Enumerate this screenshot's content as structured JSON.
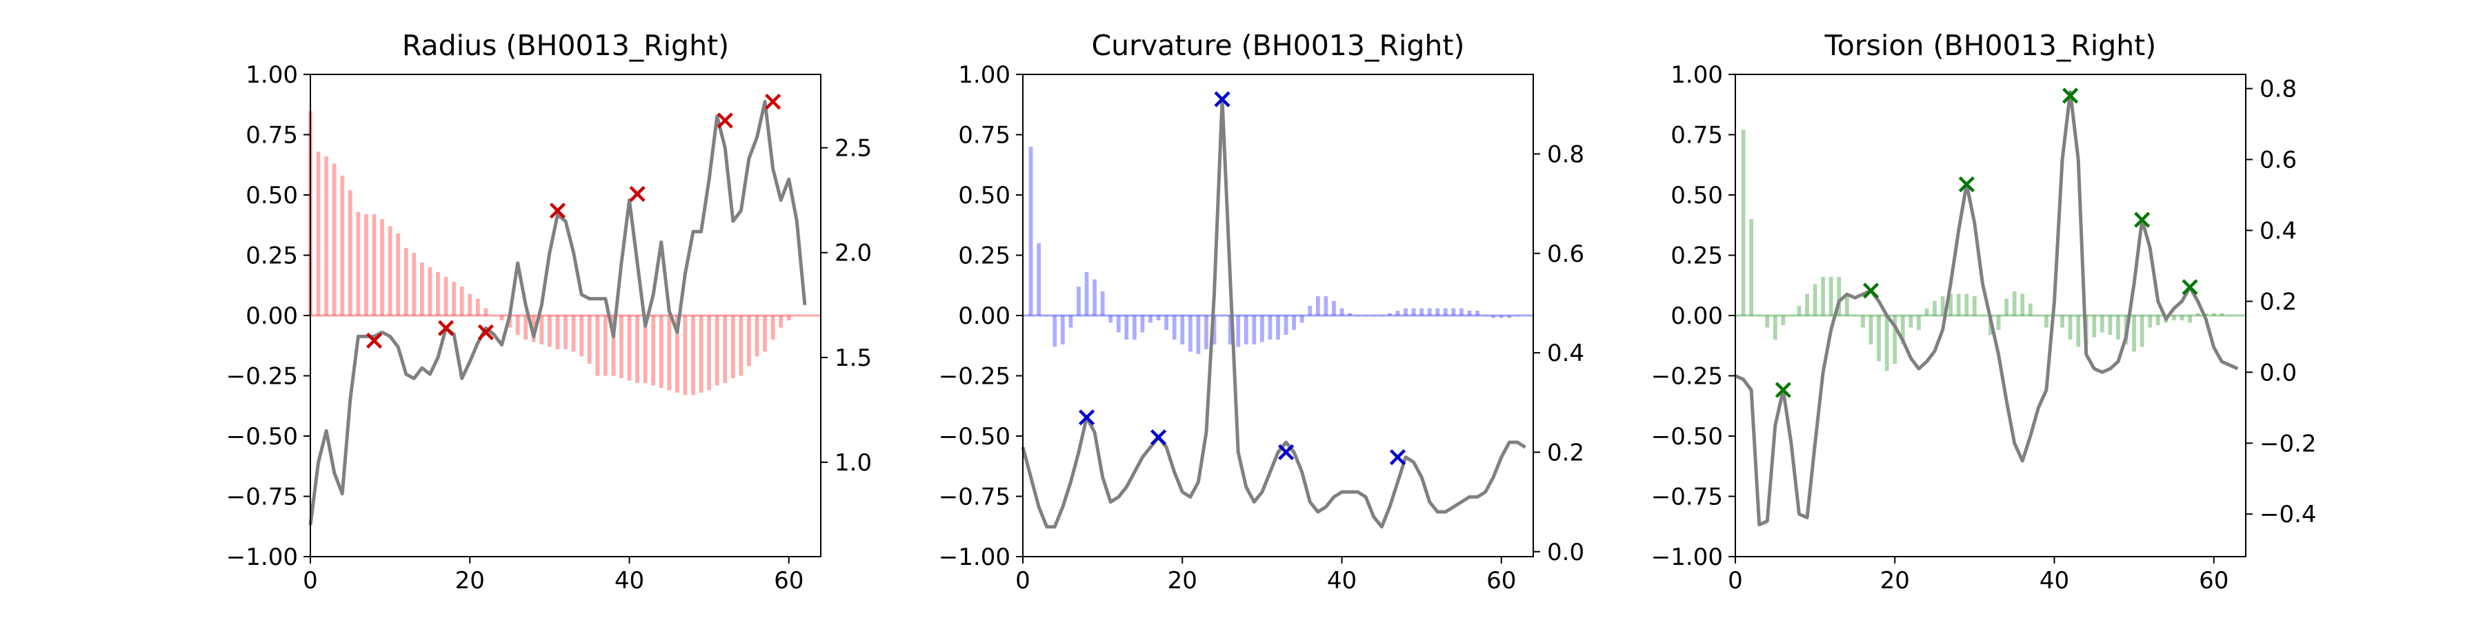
{
  "chart_data": [
    {
      "type": "bar+line",
      "title": "Radius (BH0013_Right)",
      "bar_color": "#ff0000",
      "marker_color": "#cc0000",
      "line_color": "#808080",
      "xlim": [
        0,
        64
      ],
      "ylim": [
        -1.0,
        1.0
      ],
      "y2lim": [
        0.55,
        2.85
      ],
      "xticks": [
        "0",
        "20",
        "40",
        "60"
      ],
      "yticks": [
        "1.00",
        "0.75",
        "0.50",
        "0.25",
        "0.00",
        "−0.25",
        "−0.50",
        "−0.75",
        "−1.00"
      ],
      "y2ticks": [
        "2.5",
        "2.0",
        "1.5",
        "1.0"
      ],
      "y2tick_values": [
        2.5,
        2.0,
        1.5,
        1.0
      ],
      "bars": [
        0.85,
        0.68,
        0.66,
        0.63,
        0.58,
        0.52,
        0.43,
        0.42,
        0.42,
        0.4,
        0.37,
        0.34,
        0.28,
        0.26,
        0.22,
        0.2,
        0.18,
        0.16,
        0.14,
        0.12,
        0.09,
        0.07,
        0.03,
        0.0,
        -0.02,
        -0.05,
        -0.08,
        -0.1,
        -0.11,
        -0.12,
        -0.13,
        -0.14,
        -0.14,
        -0.15,
        -0.17,
        -0.2,
        -0.25,
        -0.25,
        -0.25,
        -0.26,
        -0.27,
        -0.28,
        -0.28,
        -0.29,
        -0.3,
        -0.31,
        -0.32,
        -0.33,
        -0.33,
        -0.32,
        -0.31,
        -0.29,
        -0.28,
        -0.26,
        -0.25,
        -0.21,
        -0.17,
        -0.15,
        -0.1,
        -0.05,
        -0.02
      ],
      "line": [
        0.7,
        1.0,
        1.15,
        0.95,
        0.85,
        1.3,
        1.6,
        1.6,
        1.6,
        1.62,
        1.6,
        1.55,
        1.42,
        1.4,
        1.45,
        1.42,
        1.5,
        1.64,
        1.61,
        1.4,
        1.48,
        1.57,
        1.64,
        1.61,
        1.56,
        1.7,
        1.95,
        1.75,
        1.6,
        1.75,
        2.0,
        2.18,
        2.15,
        2.0,
        1.8,
        1.78,
        1.78,
        1.78,
        1.6,
        1.95,
        2.25,
        1.95,
        1.65,
        1.8,
        2.05,
        1.72,
        1.62,
        1.9,
        2.1,
        2.1,
        2.35,
        2.65,
        2.5,
        2.15,
        2.2,
        2.45,
        2.55,
        2.72,
        2.4,
        2.25,
        2.35,
        2.15,
        1.75
      ],
      "markers": [
        [
          8,
          1.58
        ],
        [
          17,
          1.64
        ],
        [
          22,
          1.62
        ],
        [
          31,
          2.2
        ],
        [
          41,
          2.28
        ],
        [
          52,
          2.63
        ],
        [
          58,
          2.72
        ]
      ]
    },
    {
      "type": "bar+line",
      "title": "Curvature (BH0013_Right)",
      "bar_color": "#0000ff",
      "marker_color": "#0000cc",
      "line_color": "#808080",
      "xlim": [
        0,
        64
      ],
      "ylim": [
        -1.0,
        1.0
      ],
      "y2lim": [
        -0.01,
        0.96
      ],
      "xticks": [
        "0",
        "20",
        "40",
        "60"
      ],
      "yticks": [
        "1.00",
        "0.75",
        "0.50",
        "0.25",
        "0.00",
        "−0.25",
        "−0.50",
        "−0.75",
        "−1.00"
      ],
      "y2ticks": [
        "0.8",
        "0.6",
        "0.4",
        "0.2",
        "0.0"
      ],
      "y2tick_values": [
        0.8,
        0.6,
        0.4,
        0.2,
        0.0
      ],
      "bars": [
        0.0,
        0.7,
        0.3,
        0.0,
        -0.13,
        -0.12,
        -0.05,
        0.12,
        0.18,
        0.15,
        0.1,
        -0.03,
        -0.07,
        -0.1,
        -0.1,
        -0.07,
        -0.03,
        -0.02,
        -0.06,
        -0.1,
        -0.12,
        -0.15,
        -0.16,
        -0.14,
        -0.12,
        0.0,
        -0.12,
        -0.13,
        -0.12,
        -0.12,
        -0.11,
        -0.1,
        -0.1,
        -0.08,
        -0.06,
        -0.03,
        0.04,
        0.08,
        0.08,
        0.06,
        0.03,
        0.01,
        0.0,
        0.0,
        0.0,
        0.0,
        0.01,
        0.02,
        0.03,
        0.03,
        0.03,
        0.03,
        0.03,
        0.03,
        0.03,
        0.03,
        0.02,
        0.02,
        0.0,
        -0.01,
        -0.01,
        -0.01,
        0.0
      ],
      "line": [
        0.21,
        0.15,
        0.09,
        0.05,
        0.05,
        0.09,
        0.14,
        0.2,
        0.27,
        0.24,
        0.15,
        0.1,
        0.11,
        0.13,
        0.16,
        0.19,
        0.21,
        0.23,
        0.21,
        0.16,
        0.12,
        0.11,
        0.14,
        0.24,
        0.52,
        0.91,
        0.55,
        0.2,
        0.13,
        0.1,
        0.12,
        0.16,
        0.2,
        0.22,
        0.2,
        0.16,
        0.1,
        0.08,
        0.09,
        0.11,
        0.12,
        0.12,
        0.12,
        0.11,
        0.07,
        0.05,
        0.09,
        0.14,
        0.19,
        0.18,
        0.15,
        0.1,
        0.08,
        0.08,
        0.09,
        0.1,
        0.11,
        0.11,
        0.12,
        0.15,
        0.19,
        0.22,
        0.22,
        0.21
      ],
      "markers": [
        [
          8,
          0.27
        ],
        [
          17,
          0.23
        ],
        [
          25,
          0.91
        ],
        [
          33,
          0.2
        ],
        [
          47,
          0.19
        ]
      ]
    },
    {
      "type": "bar+line",
      "title": "Torsion (BH0013_Right)",
      "bar_color": "#008000",
      "marker_color": "#007700",
      "line_color": "#808080",
      "xlim": [
        0,
        64
      ],
      "ylim": [
        -1.0,
        1.0
      ],
      "y2lim": [
        -0.52,
        0.84
      ],
      "xticks": [
        "0",
        "20",
        "40",
        "60"
      ],
      "yticks": [
        "1.00",
        "0.75",
        "0.50",
        "0.25",
        "0.00",
        "−0.25",
        "−0.50",
        "−0.75",
        "−1.00"
      ],
      "y2ticks": [
        "0.8",
        "0.6",
        "0.4",
        "0.2",
        "0.0",
        "−0.2",
        "−0.4"
      ],
      "y2tick_values": [
        0.8,
        0.6,
        0.4,
        0.2,
        0.0,
        -0.2,
        -0.4
      ],
      "bars": [
        0.0,
        0.77,
        0.4,
        0.0,
        -0.05,
        -0.1,
        -0.04,
        0.0,
        0.04,
        0.09,
        0.13,
        0.16,
        0.16,
        0.16,
        0.08,
        0.0,
        -0.05,
        -0.12,
        -0.19,
        -0.23,
        -0.2,
        -0.12,
        -0.05,
        -0.06,
        0.03,
        0.06,
        0.08,
        0.09,
        0.09,
        0.09,
        0.08,
        0.0,
        -0.08,
        -0.06,
        0.07,
        0.1,
        0.09,
        0.05,
        0.0,
        -0.05,
        0.0,
        -0.05,
        -0.1,
        -0.13,
        -0.12,
        -0.09,
        -0.07,
        -0.08,
        -0.1,
        -0.12,
        -0.15,
        -0.13,
        -0.05,
        -0.04,
        -0.03,
        -0.02,
        -0.02,
        -0.03,
        0.01,
        0.01,
        0.01,
        0.01,
        0.0
      ],
      "line": [
        -0.01,
        -0.02,
        -0.05,
        -0.43,
        -0.42,
        -0.15,
        -0.05,
        -0.2,
        -0.4,
        -0.41,
        -0.2,
        0.0,
        0.12,
        0.2,
        0.22,
        0.21,
        0.22,
        0.23,
        0.2,
        0.16,
        0.13,
        0.09,
        0.04,
        0.01,
        0.03,
        0.06,
        0.12,
        0.25,
        0.4,
        0.53,
        0.42,
        0.25,
        0.15,
        0.05,
        -0.08,
        -0.2,
        -0.25,
        -0.18,
        -0.1,
        -0.05,
        0.2,
        0.6,
        0.79,
        0.6,
        0.05,
        0.01,
        0.0,
        0.01,
        0.03,
        0.1,
        0.25,
        0.43,
        0.35,
        0.2,
        0.15,
        0.18,
        0.2,
        0.24,
        0.2,
        0.15,
        0.07,
        0.03,
        0.02,
        0.01
      ],
      "markers": [
        [
          6,
          -0.05
        ],
        [
          17,
          0.23
        ],
        [
          29,
          0.53
        ],
        [
          42,
          0.78
        ],
        [
          51,
          0.43
        ],
        [
          57,
          0.24
        ]
      ]
    }
  ]
}
